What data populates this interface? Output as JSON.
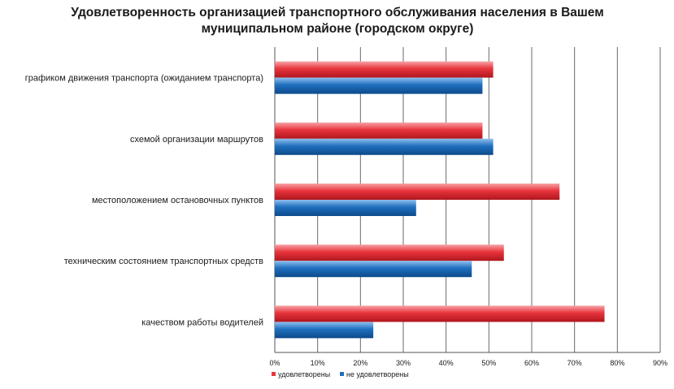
{
  "chart_data": {
    "type": "bar",
    "orientation": "horizontal",
    "title": "Удовлетворенность организацией транспортного обслуживания населения в Вашем муниципальном районе (городском округе)",
    "categories": [
      "графиком движения транспорта (ожиданием транспорта)",
      "схемой организации маршрутов",
      "местоположением остановочных пунктов",
      "техническим состоянием транспортных средств",
      "качеством работы водителей"
    ],
    "series": [
      {
        "name": "удовлетворены",
        "color": "#e8343c",
        "values": [
          51,
          48.5,
          66.5,
          53.5,
          77
        ]
      },
      {
        "name": "не удовлетворены",
        "color": "#1f6fbf",
        "values": [
          48.5,
          51,
          33,
          46,
          23
        ]
      }
    ],
    "xlim": [
      0,
      90
    ],
    "xticks": [
      "0%",
      "10%",
      "20%",
      "30%",
      "40%",
      "50%",
      "60%",
      "70%",
      "80%",
      "90%"
    ],
    "grid": true,
    "legend": "bottom-left"
  }
}
